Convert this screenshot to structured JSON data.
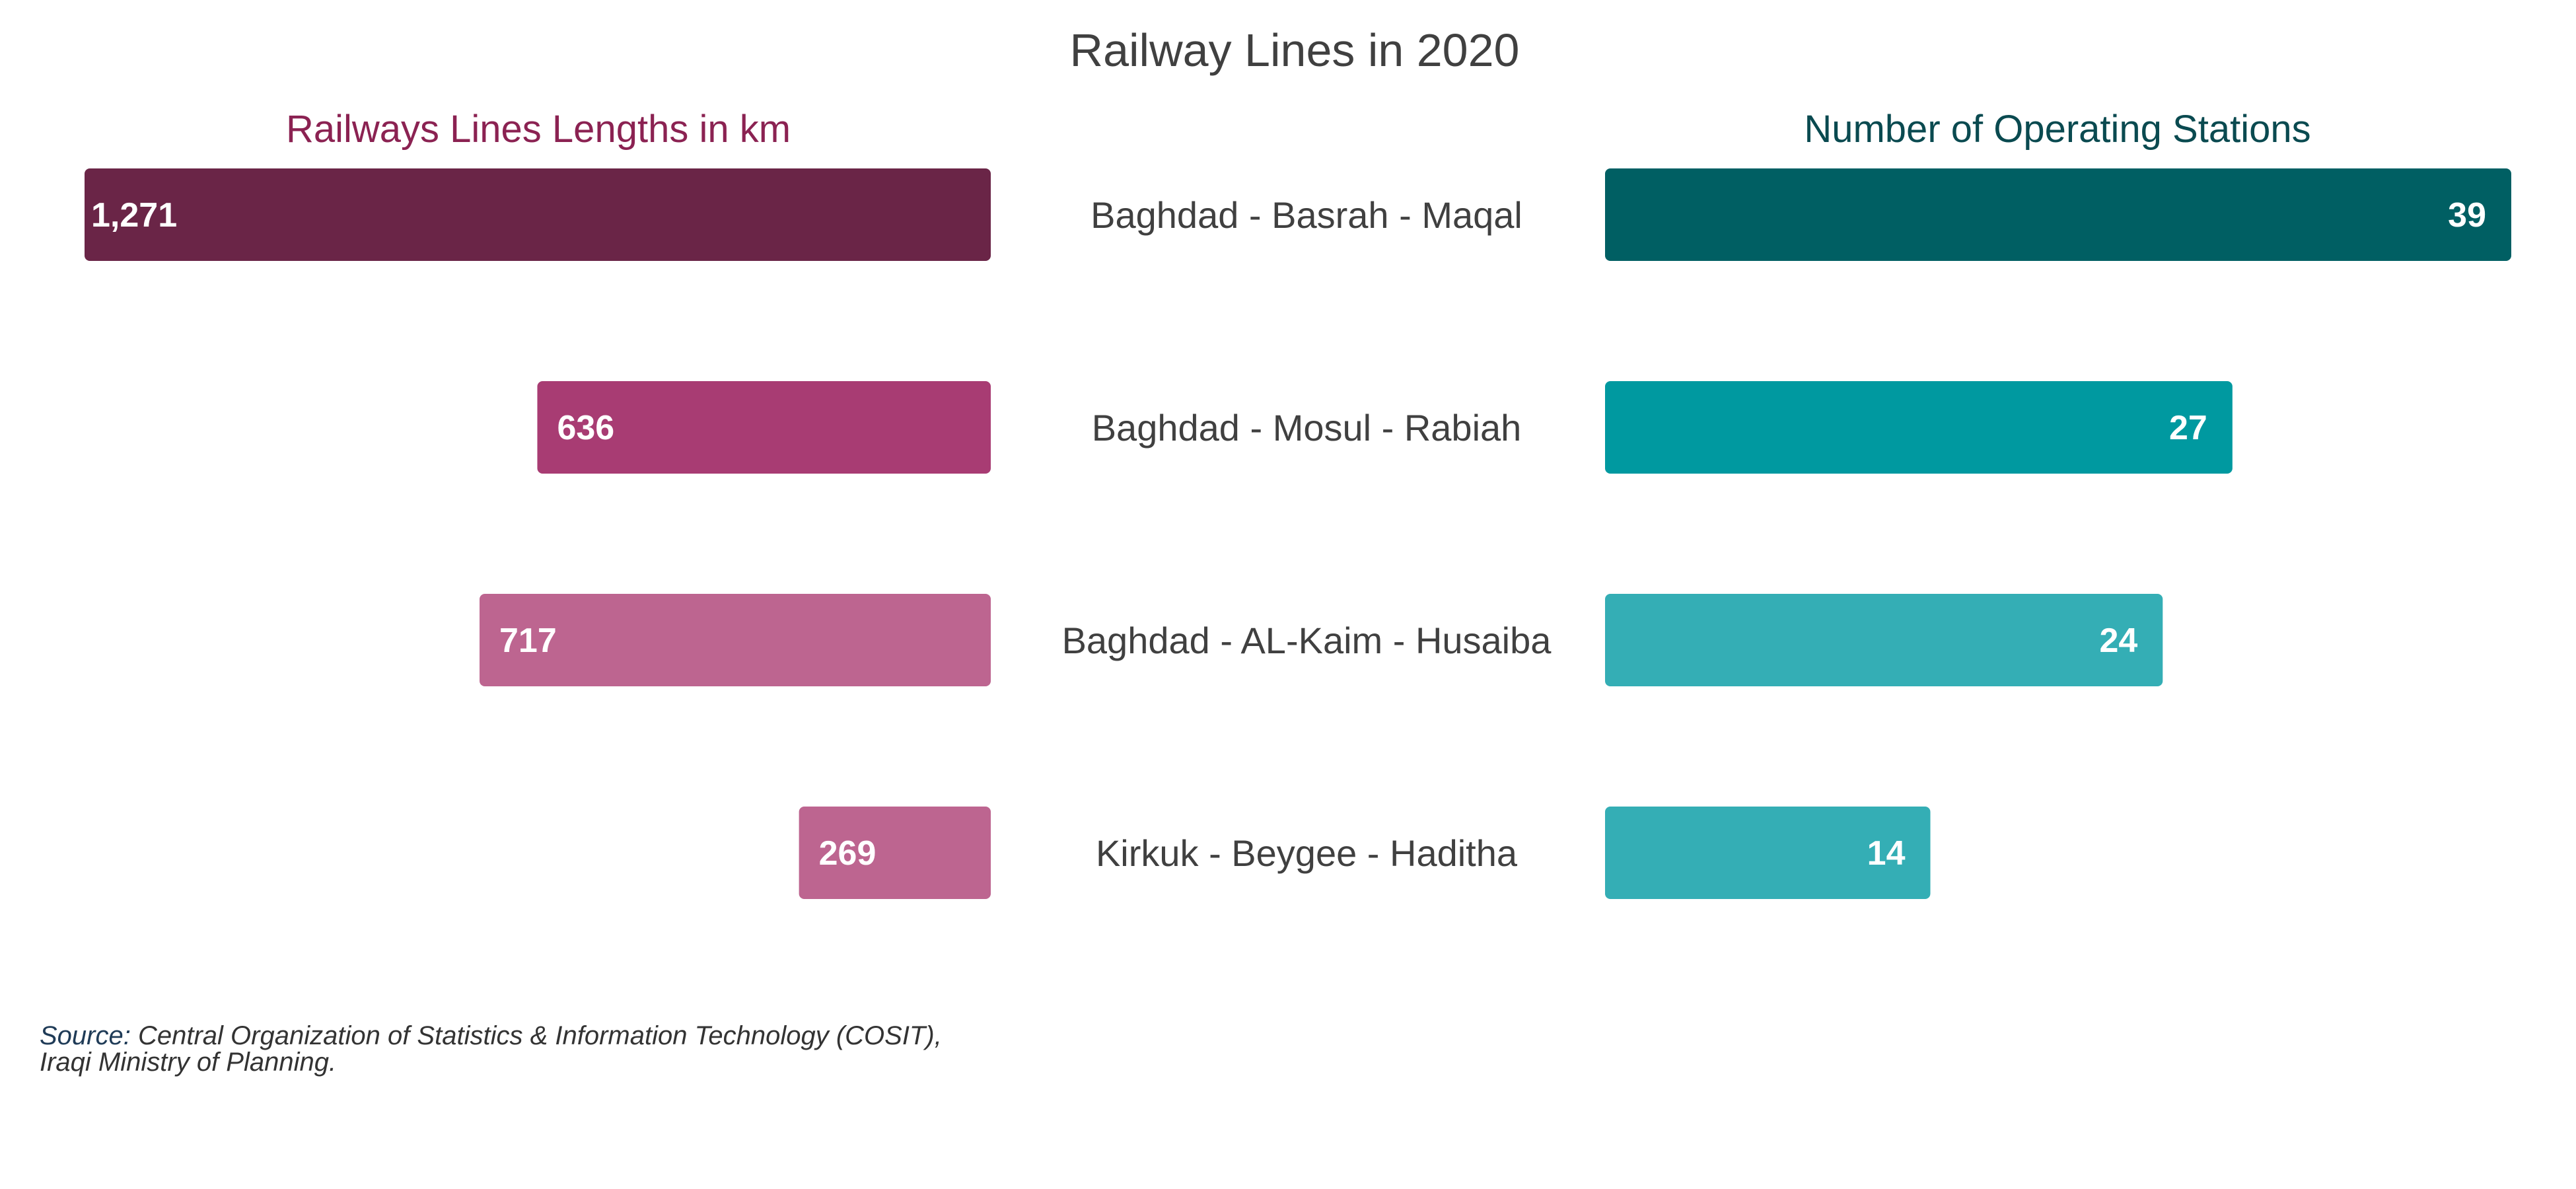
{
  "title": "Railway Lines in 2020",
  "source": {
    "prefix": "Source:",
    "text": "Central Organization of Statistics & Information Technology (COSIT),",
    "line2": "Iraqi Ministry of Planning."
  },
  "chart_data": [
    {
      "type": "bar",
      "orientation": "horizontal",
      "direction": "right-to-left",
      "title": "Railways Lines Lengths in km",
      "title_color": "#8B2252",
      "categories": [
        "Baghdad - Basrah - Maqal",
        "Baghdad - Mosul - Rabiah",
        "Baghdad - AL-Kaim - Husaiba",
        "Kirkuk - Beygee - Haditha"
      ],
      "values": [
        1271,
        636,
        717,
        269
      ],
      "value_labels": [
        "1,271",
        "636",
        "717",
        "269"
      ],
      "colors": [
        "#6A2547",
        "#A83C73",
        "#BD6590",
        "#BD6590"
      ],
      "xlim": [
        0,
        1271
      ],
      "grid": false,
      "legend": "none"
    },
    {
      "type": "bar",
      "orientation": "horizontal",
      "direction": "left-to-right",
      "title": "Number of Operating Stations",
      "title_color": "#0A4A50",
      "categories": [
        "Baghdad - Basrah - Maqal",
        "Baghdad - Mosul - Rabiah",
        "Baghdad - AL-Kaim - Husaiba",
        "Kirkuk - Beygee - Haditha"
      ],
      "values": [
        39,
        27,
        24,
        14
      ],
      "value_labels": [
        "39",
        "27",
        "24",
        "14"
      ],
      "colors": [
        "#005F63",
        "#0099A0",
        "#34AEB5",
        "#34AEB5"
      ],
      "xlim": [
        0,
        39
      ],
      "grid": false,
      "legend": "none"
    }
  ]
}
